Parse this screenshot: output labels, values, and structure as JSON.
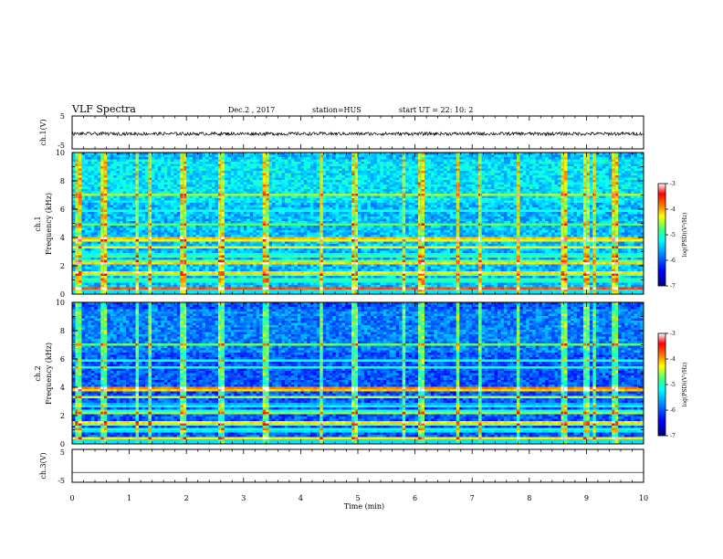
{
  "header": {
    "title": "VLF Spectra",
    "date": "Dec.2  , 2017",
    "station": "station=HUS",
    "start_ut": "start  UT =   22: 10: 2"
  },
  "colors": {
    "background": "#ffffff",
    "axis": "#000000",
    "spectrogram_colormap": [
      "#00007f",
      "#0000ff",
      "#0080ff",
      "#00ffff",
      "#40ff80",
      "#ffff00",
      "#ff8000",
      "#ff0000",
      "#ffffff"
    ]
  },
  "chart_data": [
    {
      "type": "line",
      "panel": "ch1-waveform",
      "ylabel": "ch.1(V)",
      "ylim": [
        -5,
        5
      ],
      "yticks": [
        "5",
        "-5"
      ],
      "xlim": [
        0,
        10
      ],
      "description_values": {
        "trace_level_V": -0.4,
        "trace_amplitude_V": 0.5
      }
    },
    {
      "type": "heatmap",
      "panel": "ch1-spectrogram",
      "ylabel_line1": "ch.1",
      "ylabel_line2": "Frequency (kHz)",
      "xlim": [
        0,
        10
      ],
      "ylim": [
        0,
        10
      ],
      "yticks": [
        "0",
        "2",
        "4",
        "6",
        "8",
        "10"
      ],
      "colorbar": {
        "label": "log(PSD)(V²/Hz)",
        "range": [
          -7,
          -3
        ],
        "ticks": [
          "-3",
          "-4",
          "-5",
          "-6",
          "-7"
        ]
      },
      "bands_kHz": [
        {
          "f": 0.4,
          "intensity": 0.8
        },
        {
          "f": 1.0,
          "intensity": 0.55
        },
        {
          "f": 1.5,
          "intensity": 0.7
        },
        {
          "f": 2.2,
          "intensity": 0.7
        },
        {
          "f": 2.7,
          "intensity": 0.55
        },
        {
          "f": 3.3,
          "intensity": 0.65
        },
        {
          "f": 3.9,
          "intensity": 0.75
        },
        {
          "f": 4.9,
          "intensity": 0.55
        },
        {
          "f": 5.9,
          "intensity": 0.45
        },
        {
          "f": 7.0,
          "intensity": 0.6
        }
      ],
      "impulses_min": [
        0.1,
        0.55,
        1.15,
        1.35,
        1.95,
        2.6,
        3.4,
        4.35,
        4.95,
        5.8,
        6.1,
        6.75,
        7.15,
        7.8,
        8.6,
        9.0,
        9.15,
        9.5
      ]
    },
    {
      "type": "heatmap",
      "panel": "ch2-spectrogram",
      "ylabel_line1": "ch.2",
      "ylabel_line2": "Frequency (kHz)",
      "xlim": [
        0,
        10
      ],
      "ylim": [
        0,
        10
      ],
      "yticks": [
        "0",
        "2",
        "4",
        "6",
        "8",
        "10"
      ],
      "colorbar": {
        "label": "log(PSD)(V²/Hz)",
        "range": [
          -7,
          -3
        ],
        "ticks": [
          "-3",
          "-4",
          "-5",
          "-6",
          "-7"
        ]
      },
      "bands_kHz": [
        {
          "f": 0.4,
          "intensity": 0.65
        },
        {
          "f": 1.0,
          "intensity": 0.5
        },
        {
          "f": 1.5,
          "intensity": 0.7
        },
        {
          "f": 2.2,
          "intensity": 0.6
        },
        {
          "f": 2.7,
          "intensity": 0.45
        },
        {
          "f": 3.3,
          "intensity": 0.6
        },
        {
          "f": 3.9,
          "intensity": 0.8
        },
        {
          "f": 5.4,
          "intensity": 0.45
        },
        {
          "f": 5.9,
          "intensity": 0.45
        },
        {
          "f": 7.0,
          "intensity": 0.55
        }
      ],
      "impulses_min": [
        0.1,
        0.55,
        1.15,
        1.35,
        1.95,
        2.6,
        3.4,
        4.35,
        4.95,
        5.8,
        6.1,
        6.75,
        7.15,
        7.8,
        8.6,
        9.0,
        9.15,
        9.5
      ]
    },
    {
      "type": "line",
      "panel": "ch3-waveform",
      "ylabel": "ch.3(V)",
      "ylim": [
        -5,
        5
      ],
      "yticks": [
        "5",
        "-5"
      ],
      "xlim": [
        0,
        10
      ],
      "description_values": {
        "trace_level_V": -2.0,
        "trace_amplitude_V": 0
      }
    }
  ],
  "x_axis": {
    "label": "Time (min)",
    "ticks": [
      "0",
      "1",
      "2",
      "3",
      "4",
      "5",
      "6",
      "7",
      "8",
      "9",
      "10"
    ]
  }
}
